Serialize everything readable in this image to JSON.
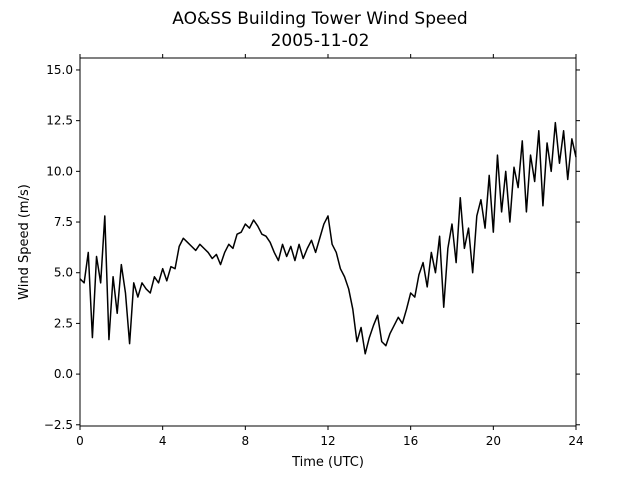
{
  "chart_data": {
    "type": "line",
    "title": "AO&SS Building Tower Wind Speed",
    "subtitle": "2005-11-02",
    "x_label": "Time (UTC)",
    "y_label": "Wind Speed (m/s)",
    "xlim": [
      0,
      24
    ],
    "ylim": [
      -2.56,
      15.59
    ],
    "xticks": [
      0,
      4,
      8,
      12,
      16,
      20,
      24
    ],
    "yticks": [
      {
        "value": -2.5,
        "label": "−2.5"
      },
      {
        "value": 0,
        "label": "0.0"
      },
      2.5,
      {
        "value": 5,
        "label": "5.0"
      },
      7.5,
      {
        "value": 10,
        "label": "10.0"
      },
      12.5,
      {
        "value": 15,
        "label": "15.0"
      }
    ],
    "x": [
      0,
      0.2,
      0.4,
      0.6,
      0.8,
      1,
      1.2,
      1.4,
      1.6,
      1.8,
      2,
      2.2,
      2.4,
      2.6,
      2.8,
      3,
      3.2,
      3.4,
      3.6,
      3.8,
      4,
      4.2,
      4.4,
      4.6,
      4.8,
      5,
      5.2,
      5.4,
      5.6,
      5.8,
      6,
      6.2,
      6.4,
      6.6,
      6.8,
      7,
      7.2,
      7.4,
      7.6,
      7.8,
      8,
      8.2,
      8.4,
      8.6,
      8.8,
      9,
      9.2,
      9.4,
      9.6,
      9.8,
      10,
      10.2,
      10.4,
      10.6,
      10.8,
      11,
      11.2,
      11.4,
      11.6,
      11.8,
      12,
      12.2,
      12.4,
      12.6,
      12.8,
      13,
      13.2,
      13.4,
      13.6,
      13.8,
      14,
      14.2,
      14.4,
      14.6,
      14.8,
      15,
      15.2,
      15.4,
      15.6,
      15.8,
      16,
      16.2,
      16.4,
      16.6,
      16.8,
      17,
      17.2,
      17.4,
      17.6,
      17.8,
      18,
      18.2,
      18.4,
      18.6,
      18.8,
      19,
      19.2,
      19.4,
      19.6,
      19.8,
      20,
      20.2,
      20.4,
      20.6,
      20.8,
      21,
      21.2,
      21.4,
      21.6,
      21.8,
      22,
      22.2,
      22.4,
      22.6,
      22.8,
      23,
      23.2,
      23.4,
      23.6,
      23.8,
      24
    ],
    "series": [
      {
        "name": "Wind Speed",
        "color": "#000000",
        "values": [
          4.7,
          4.5,
          6.0,
          1.8,
          5.8,
          4.5,
          7.8,
          1.7,
          4.8,
          3.0,
          5.4,
          4.0,
          1.5,
          4.5,
          3.8,
          4.5,
          4.2,
          4.0,
          4.8,
          4.5,
          5.2,
          4.6,
          5.3,
          5.2,
          6.3,
          6.7,
          6.5,
          6.3,
          6.1,
          6.4,
          6.2,
          6.0,
          5.7,
          5.9,
          5.4,
          6.0,
          6.4,
          6.2,
          6.9,
          7.0,
          7.4,
          7.2,
          7.6,
          7.3,
          6.9,
          6.8,
          6.5,
          6.0,
          5.6,
          6.4,
          5.8,
          6.3,
          5.6,
          6.4,
          5.7,
          6.2,
          6.6,
          6.0,
          6.7,
          7.4,
          7.8,
          6.4,
          6.0,
          5.2,
          4.8,
          4.2,
          3.2,
          1.6,
          2.3,
          1.0,
          1.8,
          2.4,
          2.9,
          1.6,
          1.4,
          2.0,
          2.4,
          2.8,
          2.5,
          3.2,
          4.0,
          3.8,
          4.9,
          5.5,
          4.3,
          6.0,
          5.0,
          6.8,
          3.3,
          6.2,
          7.4,
          5.5,
          8.7,
          6.2,
          7.2,
          5.0,
          7.8,
          8.6,
          7.2,
          9.8,
          7.0,
          10.8,
          8.0,
          10.0,
          7.5,
          10.2,
          9.2,
          11.5,
          8.0,
          10.8,
          9.5,
          12.0,
          8.3,
          11.4,
          10.0,
          12.4,
          10.4,
          12.0,
          9.6,
          11.6,
          10.7
        ]
      }
    ]
  }
}
